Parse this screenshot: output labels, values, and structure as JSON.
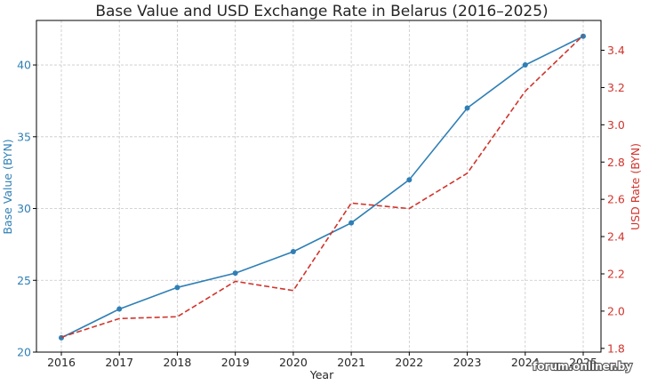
{
  "chart_data": {
    "type": "line",
    "title": "Base Value and USD Exchange Rate in Belarus (2016–2025)",
    "xlabel": "Year",
    "x": [
      2016,
      2017,
      2018,
      2019,
      2020,
      2021,
      2022,
      2023,
      2024,
      2025
    ],
    "series": [
      {
        "name": "Base Value (BYN)",
        "axis": "left",
        "style": "solid",
        "marker": "circle",
        "color": "#2f7fb5",
        "values": [
          21,
          23,
          24.5,
          25.5,
          27,
          29,
          32,
          37,
          40,
          42
        ]
      },
      {
        "name": "USD Rate (BYN)",
        "axis": "right",
        "style": "dashed",
        "marker": "none",
        "color": "#d0342c",
        "values": [
          1.86,
          1.96,
          1.97,
          2.16,
          2.11,
          2.58,
          2.55,
          2.74,
          3.18,
          3.48
        ]
      }
    ],
    "y_left": {
      "label": "Base Value (BYN)",
      "ticks": [
        20,
        25,
        30,
        35,
        40
      ],
      "range": [
        20,
        43.1
      ],
      "color": "#2f7fb5"
    },
    "y_right": {
      "label": "USD Rate (BYN)",
      "ticks": [
        "1.8",
        "2.0",
        "2.2",
        "2.4",
        "2.6",
        "2.8",
        "3.0",
        "3.2",
        "3.4"
      ],
      "range": [
        1.78,
        3.56
      ],
      "color": "#d0342c"
    },
    "grid": true
  },
  "watermark": "forum.onliner.by"
}
